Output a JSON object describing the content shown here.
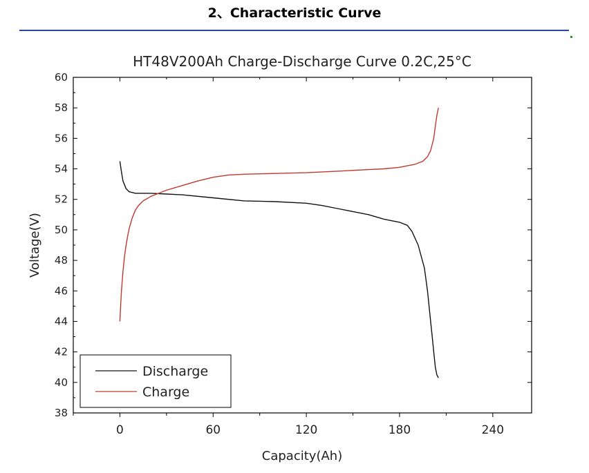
{
  "section_heading": "2、Characteristic Curve",
  "colors": {
    "heading_rule": "#1f3fd6",
    "discharge": "#111111",
    "charge": "#c0392b",
    "axis": "#000000"
  },
  "chart_data": {
    "type": "line",
    "title": "HT48V200Ah  Charge-Discharge Curve  0.2C,25°C",
    "xlabel": "Capacity(Ah)",
    "ylabel": "Voltage(V)",
    "xlim": [
      -30,
      265
    ],
    "ylim": [
      38,
      60
    ],
    "x_ticks": [
      0,
      60,
      120,
      180,
      240
    ],
    "x_tick_labels": [
      "0",
      "60",
      "120",
      "180",
      "240"
    ],
    "y_ticks": [
      38,
      40,
      42,
      44,
      46,
      48,
      50,
      52,
      54,
      56,
      58,
      60
    ],
    "y_tick_labels": [
      "38",
      "40",
      "42",
      "44",
      "46",
      "48",
      "50",
      "52",
      "54",
      "56",
      "58",
      "60"
    ],
    "grid": false,
    "legend_position": "bottom-left",
    "series": [
      {
        "name": "Discharge",
        "x": [
          0,
          1,
          2,
          4,
          6,
          10,
          15,
          20,
          30,
          40,
          60,
          80,
          100,
          120,
          130,
          140,
          150,
          160,
          170,
          180,
          185,
          188,
          192,
          196,
          198,
          200,
          201,
          202,
          203,
          204,
          205
        ],
        "y": [
          54.5,
          53.8,
          53.2,
          52.7,
          52.5,
          52.4,
          52.4,
          52.4,
          52.35,
          52.3,
          52.1,
          51.9,
          51.85,
          51.75,
          51.6,
          51.4,
          51.2,
          51.0,
          50.7,
          50.5,
          50.3,
          49.9,
          49.0,
          47.5,
          46.0,
          44.0,
          43.0,
          42.0,
          41.0,
          40.5,
          40.3
        ]
      },
      {
        "name": "Charge",
        "x": [
          0,
          0.5,
          1,
          2,
          3,
          4,
          5,
          6,
          8,
          10,
          12,
          15,
          20,
          25,
          30,
          40,
          50,
          60,
          70,
          80,
          100,
          120,
          140,
          160,
          170,
          180,
          185,
          190,
          195,
          198,
          200,
          202,
          203,
          204,
          205
        ],
        "y": [
          44.0,
          45.0,
          46.0,
          47.3,
          48.3,
          49.0,
          49.6,
          50.1,
          50.8,
          51.3,
          51.6,
          51.9,
          52.2,
          52.4,
          52.6,
          52.9,
          53.2,
          53.45,
          53.6,
          53.65,
          53.7,
          53.75,
          53.85,
          53.95,
          54.0,
          54.1,
          54.2,
          54.3,
          54.5,
          54.8,
          55.2,
          56.0,
          56.8,
          57.5,
          58.0
        ]
      }
    ]
  }
}
